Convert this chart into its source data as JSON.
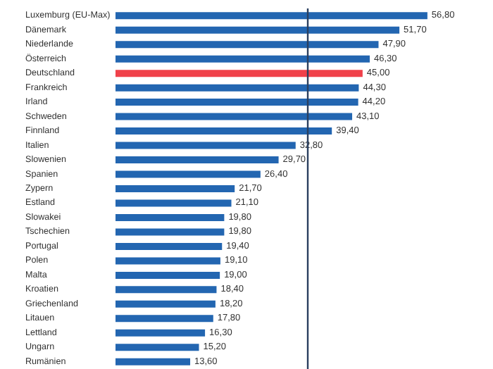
{
  "chart_data": {
    "type": "bar",
    "orientation": "horizontal",
    "categories": [
      "Luxemburg (EU-Max)",
      "Dänemark",
      "Niederlande",
      "Österreich",
      "Deutschland",
      "Frankreich",
      "Irland",
      "Schweden",
      "Finnland",
      "Italien",
      "Slowenien",
      "Spanien",
      "Zypern",
      "Estland",
      "Slowakei",
      "Tschechien",
      "Portugal",
      "Polen",
      "Malta",
      "Kroatien",
      "Griechenland",
      "Litauen",
      "Lettland",
      "Ungarn",
      "Rumänien"
    ],
    "values": [
      56.8,
      51.7,
      47.9,
      46.3,
      45.0,
      44.3,
      44.2,
      43.1,
      39.4,
      32.8,
      29.7,
      26.4,
      21.7,
      21.1,
      19.8,
      19.8,
      19.4,
      19.1,
      19.0,
      18.4,
      18.2,
      17.8,
      16.3,
      15.2,
      13.6
    ],
    "value_labels": [
      "56,80",
      "51,70",
      "47,90",
      "46,30",
      "45,00",
      "44,30",
      "44,20",
      "43,10",
      "39,40",
      "32,80",
      "29,70",
      "26,40",
      "21,70",
      "21,10",
      "19,80",
      "19,80",
      "19,40",
      "19,10",
      "19,00",
      "18,40",
      "18,20",
      "17,80",
      "16,30",
      "15,20",
      "13,60"
    ],
    "colors": [
      "#2366b1",
      "#2366b1",
      "#2366b1",
      "#2366b1",
      "#f0414a",
      "#2366b1",
      "#2366b1",
      "#2366b1",
      "#2366b1",
      "#2366b1",
      "#2366b1",
      "#2366b1",
      "#2366b1",
      "#2366b1",
      "#2366b1",
      "#2366b1",
      "#2366b1",
      "#2366b1",
      "#2366b1",
      "#2366b1",
      "#2366b1",
      "#2366b1",
      "#2366b1",
      "#2366b1",
      "#2366b1"
    ],
    "ref_lines": [
      {
        "axis": "x",
        "value": 35,
        "color": "#2a3f5f"
      }
    ],
    "tick_labels": "y"
  }
}
